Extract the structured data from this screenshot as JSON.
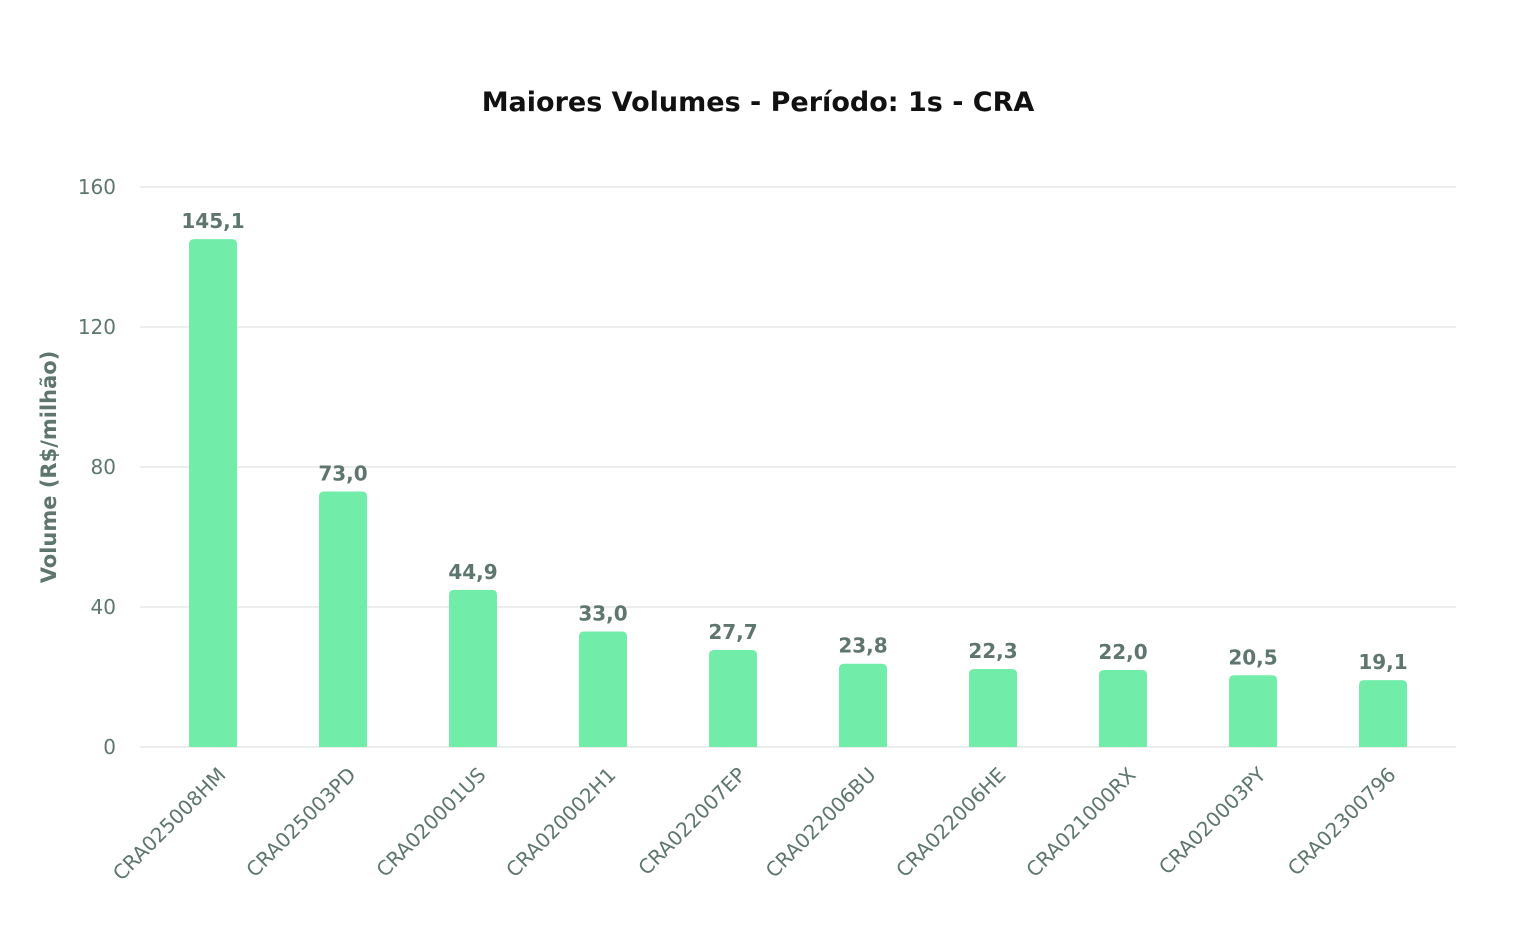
{
  "chart_data": {
    "type": "bar",
    "title": "Maiores Volumes - Período: 1s - CRA",
    "xlabel": "",
    "ylabel": "Volume (R$/milhão)",
    "ylim": [
      0,
      160
    ],
    "yticks": [
      0,
      40,
      80,
      120,
      160
    ],
    "grid": true,
    "legend": "none",
    "bar_color": "#72eda9",
    "categories": [
      "CRA025008HM",
      "CRA025003PD",
      "CRA020001US",
      "CRA020002H1",
      "CRA022007EP",
      "CRA022006BU",
      "CRA022006HE",
      "CRA021000RX",
      "CRA020003PY",
      "CRA02300796"
    ],
    "values": [
      145.1,
      73.0,
      44.9,
      33.0,
      27.7,
      23.8,
      22.3,
      22.0,
      20.5,
      19.1
    ],
    "data_labels": [
      "145,1",
      "73,0",
      "44,9",
      "33,0",
      "27,7",
      "23,8",
      "22,3",
      "22,0",
      "20,5",
      "19,1"
    ]
  }
}
